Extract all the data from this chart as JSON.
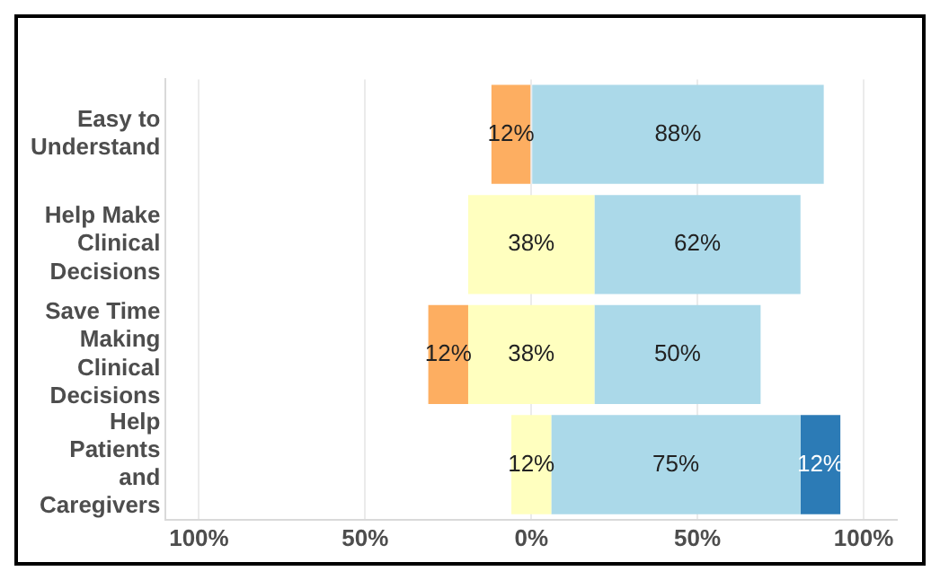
{
  "chart_data": {
    "type": "bar",
    "orientation": "horizontal",
    "categories": [
      "Easy to Understand",
      "Help Make Clinical Decisions",
      "Save Time Making Clinical Decisions",
      "Help Patients and Caregivers"
    ],
    "series": [
      {
        "color": "#fdae61",
        "base": [
          -12,
          null,
          -31,
          null
        ],
        "values": [
          12,
          null,
          12,
          null
        ],
        "value_labels": [
          "12%",
          null,
          "12%",
          null
        ]
      },
      {
        "color": "#ffffbf",
        "base": [
          null,
          -19,
          -19,
          -6
        ],
        "values": [
          null,
          38,
          38,
          12
        ],
        "value_labels": [
          null,
          "38%",
          "38%",
          "12%"
        ]
      },
      {
        "color": "#abd9e9",
        "base": [
          0,
          19,
          19,
          6
        ],
        "values": [
          88,
          62,
          50,
          75
        ],
        "value_labels": [
          "88%",
          "62%",
          "50%",
          "75%"
        ]
      },
      {
        "color": "#2c7bb6",
        "base": [
          null,
          null,
          null,
          81
        ],
        "values": [
          null,
          null,
          null,
          12
        ],
        "value_labels": [
          null,
          null,
          null,
          "12%"
        ]
      }
    ],
    "xlim": [
      -110,
      110
    ],
    "xticks": [
      {
        "value": -100,
        "label": "100%"
      },
      {
        "value": -50,
        "label": "50%"
      },
      {
        "value": 0,
        "label": "0%"
      },
      {
        "value": 50,
        "label": "50%"
      },
      {
        "value": 100,
        "label": "100%"
      }
    ],
    "grid": "x",
    "legend": false
  }
}
